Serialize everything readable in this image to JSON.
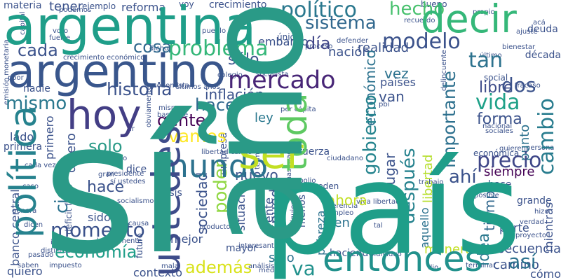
{
  "word_cloud": {
    "words": [
      {
        "text": "sí",
        "color": "#2a9a87"
      },
      {
        "text": "año",
        "color": "#2a9a87"
      },
      {
        "text": "país",
        "color": "#1f9e89"
      },
      {
        "text": "argentina",
        "color": "#1f9e89"
      },
      {
        "text": "hoy",
        "color": "#433e85"
      },
      {
        "text": "argentino",
        "color": "#39568c"
      },
      {
        "text": "política",
        "color": "#26828e"
      },
      {
        "text": "ustedes",
        "color": "#3e4c8a"
      },
      {
        "text": "ser",
        "color": "#c2df23"
      },
      {
        "text": "decir",
        "color": "#35b779"
      },
      {
        "text": "toda",
        "color": "#5ec962"
      },
      {
        "text": "entonces",
        "color": "#21918c"
      },
      {
        "text": "mundo",
        "color": "#2c728e"
      },
      {
        "text": "mercado",
        "color": "#482677"
      },
      {
        "text": "político",
        "color": "#2a788e"
      },
      {
        "text": "problema",
        "color": "#35b779"
      },
      {
        "text": "historia",
        "color": "#3b528b"
      },
      {
        "text": "modelo",
        "color": "#3b528b"
      },
      {
        "text": "sistema",
        "color": "#31688e"
      },
      {
        "text": "hecho",
        "color": "#48c16e"
      },
      {
        "text": "tan",
        "color": "#2c728e"
      },
      {
        "text": "dos",
        "color": "#3b528b"
      },
      {
        "text": "hacer",
        "color": "#31688e"
      },
      {
        "text": "cosa",
        "color": "#31688e"
      },
      {
        "text": "gobierno",
        "color": "#25848e"
      },
      {
        "text": "vida",
        "color": "#1fa188"
      },
      {
        "text": "cambio",
        "color": "#287c8e"
      },
      {
        "text": "importante",
        "color": "#2d708e"
      },
      {
        "text": "precio",
        "color": "#3f4788"
      },
      {
        "text": "después",
        "color": "#26828e"
      },
      {
        "text": "gente",
        "color": "#440154"
      },
      {
        "text": "mismo",
        "color": "#2a788e"
      },
      {
        "text": "cada",
        "color": "#3b528b"
      },
      {
        "text": "vamos",
        "color": "#fde725"
      },
      {
        "text": "momento",
        "color": "#3b528b"
      },
      {
        "text": "economía",
        "color": "#1f9e89"
      },
      {
        "text": "así",
        "color": "#2c728e"
      },
      {
        "text": "va",
        "color": "#21918c"
      },
      {
        "text": "además",
        "color": "#d8e219"
      },
      {
        "text": "ciento",
        "color": "#2c728e"
      },
      {
        "text": "hace",
        "color": "#3b528b"
      },
      {
        "text": "solo",
        "color": "#2a9a87"
      },
      {
        "text": "día",
        "color": "#404688"
      },
      {
        "text": "sociedad",
        "color": "#3b528b"
      },
      {
        "text": "poder",
        "color": "#90d743"
      },
      {
        "text": "puede",
        "color": "#3b528b"
      },
      {
        "text": "ahí",
        "color": "#3b528b"
      },
      {
        "text": "idea",
        "color": "#2a788e"
      },
      {
        "text": "forma",
        "color": "#3b528b"
      },
      {
        "text": "libre",
        "color": "#3e4c8a"
      },
      {
        "text": "nación",
        "color": "#3b528b"
      },
      {
        "text": "inflación",
        "color": "#3b528b"
      },
      {
        "text": "sólo",
        "color": "#3b528b"
      },
      {
        "text": "económico",
        "color": "#2c728e"
      },
      {
        "text": "punto",
        "color": "#2c728e"
      },
      {
        "text": "embargo",
        "color": "#3b528b"
      },
      {
        "text": "realidad",
        "color": "#3b528b"
      },
      {
        "text": "ley",
        "color": "#2a788e"
      },
      {
        "text": "vez",
        "color": "#2c728e"
      },
      {
        "text": "países",
        "color": "#3b528b"
      },
      {
        "text": "van",
        "color": "#3b528b"
      },
      {
        "text": "lugar",
        "color": "#3b528b"
      },
      {
        "text": "libertad",
        "color": "#b5de2b"
      },
      {
        "text": "siempre",
        "color": "#440154"
      },
      {
        "text": "tiempo",
        "color": "#31688e"
      },
      {
        "text": "ahora",
        "color": "#c2df23"
      },
      {
        "text": "nuevo",
        "color": "#3b528b"
      },
      {
        "text": "frente",
        "color": "#3b528b"
      },
      {
        "text": "situación",
        "color": "#3b528b"
      },
      {
        "text": "bien",
        "color": "#2c728e"
      },
      {
        "text": "sino",
        "color": "#2c728e"
      },
      {
        "text": "pobreza",
        "color": "#2c728e"
      },
      {
        "text": "aquello",
        "color": "#2c728e"
      },
      {
        "text": "parte",
        "color": "#3b528b"
      },
      {
        "text": "manera",
        "color": "#c2df23"
      },
      {
        "text": "consecuencia",
        "color": "#3b528b"
      },
      {
        "text": "camino",
        "color": "#3b528b"
      },
      {
        "text": "cómo",
        "color": "#3b528b"
      },
      {
        "text": "contexto",
        "color": "#3b528b"
      },
      {
        "text": "quiero",
        "color": "#3b528b"
      },
      {
        "text": "mejor",
        "color": "#3b528b"
      },
      {
        "text": "sido",
        "color": "#3b528b"
      },
      {
        "text": "banco central",
        "color": "#3b528b"
      },
      {
        "text": "dinero",
        "color": "#3b528b"
      },
      {
        "text": "primero",
        "color": "#3b528b"
      },
      {
        "text": "lado",
        "color": "#3b528b"
      },
      {
        "text": "materia",
        "color": "#3b528b"
      },
      {
        "text": "tener",
        "color": "#3b528b"
      },
      {
        "text": "reforma",
        "color": "#3b528b"
      },
      {
        "text": "crecimiento",
        "color": "#3b528b"
      },
      {
        "text": "bueno",
        "color": "#3b528b"
      },
      {
        "text": "nadie",
        "color": "#3b528b"
      },
      {
        "text": "primera",
        "color": "#3b528b"
      },
      {
        "text": "deuda",
        "color": "#3b528b"
      },
      {
        "text": "década",
        "color": "#3b528b"
      },
      {
        "text": "social",
        "color": "#3b528b"
      },
      {
        "text": "económica",
        "color": "#3b528b"
      },
      {
        "text": "base",
        "color": "#3b528b"
      },
      {
        "text": "grande",
        "color": "#3b528b"
      },
      {
        "text": "mientras",
        "color": "#3b528b"
      },
      {
        "text": "menos",
        "color": "#3b528b"
      },
      {
        "text": "mayor",
        "color": "#3b528b"
      },
      {
        "text": "fuerza",
        "color": "#3b528b"
      },
      {
        "text": "empresa",
        "color": "#3b528b"
      },
      {
        "text": "crisis",
        "color": "#3b528b"
      },
      {
        "text": "dice",
        "color": "#3b528b"
      },
      {
        "text": "pueden",
        "color": "#3b528b"
      },
      {
        "text": "ejemplo",
        "color": "#3b528b"
      },
      {
        "text": "voy",
        "color": "#3b528b"
      },
      {
        "text": "proceso",
        "color": "#3b528b"
      },
      {
        "text": "único",
        "color": "#3b528b"
      },
      {
        "text": "sí ustedes",
        "color": "#3b528b"
      },
      {
        "text": "déficit fiscal",
        "color": "#3b528b"
      },
      {
        "text": "socialismo",
        "color": "#3b528b"
      },
      {
        "text": "haciendo",
        "color": "#3b528b"
      },
      {
        "text": "impuesto",
        "color": "#3b528b"
      },
      {
        "text": "saben",
        "color": "#3b528b"
      },
      {
        "text": "pasado",
        "color": "#3b528b"
      },
      {
        "text": "ingreso",
        "color": "#3b528b"
      },
      {
        "text": "futuro",
        "color": "#3b528b"
      },
      {
        "text": "básicamente",
        "color": "#3b528b"
      },
      {
        "text": "producto",
        "color": "#3b528b"
      },
      {
        "text": "verdad",
        "color": "#3b528b"
      },
      {
        "text": "individuo",
        "color": "#3b528b"
      },
      {
        "text": "terminar",
        "color": "#3b528b"
      },
      {
        "text": "hizo",
        "color": "#3b528b"
      },
      {
        "text": "proyecto",
        "color": "#3b528b"
      },
      {
        "text": "persona",
        "color": "#3b528b"
      },
      {
        "text": "término",
        "color": "#3b528b"
      },
      {
        "text": "libertad carajo",
        "color": "#3b528b"
      },
      {
        "text": "viva libertad",
        "color": "#3b528b"
      },
      {
        "text": "cualquier",
        "color": "#3b528b"
      },
      {
        "text": "trabajo",
        "color": "#3b528b"
      },
      {
        "text": "quieren",
        "color": "#3b528b"
      },
      {
        "text": "herencia",
        "color": "#3b528b"
      },
      {
        "text": "empleo",
        "color": "#3b528b"
      },
      {
        "text": "posible",
        "color": "#3b528b"
      },
      {
        "text": "interesante",
        "color": "#3b528b"
      },
      {
        "text": "presidente",
        "color": "#3b528b"
      },
      {
        "text": "chico",
        "color": "#3b528b"
      },
      {
        "text": "pesar",
        "color": "#3b528b"
      },
      {
        "text": "cada vez",
        "color": "#3b528b"
      },
      {
        "text": "gran",
        "color": "#3b528b"
      },
      {
        "text": "caso",
        "color": "#3b528b"
      },
      {
        "text": "genera",
        "color": "#3b528b"
      },
      {
        "text": "dicen",
        "color": "#3b528b"
      },
      {
        "text": "distintos",
        "color": "#3b528b"
      },
      {
        "text": "bastante",
        "color": "#3b528b"
      },
      {
        "text": "misma",
        "color": "#3b528b"
      },
      {
        "text": "mala",
        "color": "#3b528b"
      },
      {
        "text": "obviamente",
        "color": "#3b528b"
      },
      {
        "text": "ir",
        "color": "#3b528b"
      },
      {
        "text": "nacional",
        "color": "#3b528b"
      },
      {
        "text": "sociales",
        "color": "#3b528b"
      },
      {
        "text": "delincuente",
        "color": "#3b528b"
      },
      {
        "text": "fracaso",
        "color": "#3b528b"
      },
      {
        "text": "último",
        "color": "#3b528b"
      },
      {
        "text": "bienestar",
        "color": "#3b528b"
      },
      {
        "text": "ajuste",
        "color": "#3b528b"
      },
      {
        "text": "acá",
        "color": "#3b528b"
      },
      {
        "text": "propio",
        "color": "#3b528b"
      },
      {
        "text": "recuerdo",
        "color": "#3b528b"
      },
      {
        "text": "defender",
        "color": "#3b528b"
      },
      {
        "text": "pueblo",
        "color": "#3b528b"
      },
      {
        "text": "podemos",
        "color": "#3b528b"
      },
      {
        "text": "voto",
        "color": "#3b528b"
      },
      {
        "text": "fuerte",
        "color": "#3b528b"
      },
      {
        "text": "capital",
        "color": "#3b528b"
      },
      {
        "text": "crecimiento económico",
        "color": "#3b528b"
      },
      {
        "text": "emisión monetaria",
        "color": "#3b528b"
      },
      {
        "text": "pbi",
        "color": "#3b528b"
      },
      {
        "text": "per cápita",
        "color": "#3b528b"
      },
      {
        "text": "socialista",
        "color": "#3b528b"
      },
      {
        "text": "colegio",
        "color": "#3b528b"
      },
      {
        "text": "dicho",
        "color": "#3b528b"
      },
      {
        "text": "economista",
        "color": "#3b528b"
      },
      {
        "text": "últimos años",
        "color": "#3b528b"
      },
      {
        "text": "muchas gracias",
        "color": "#3b528b"
      },
      {
        "text": "dio",
        "color": "#3b528b"
      },
      {
        "text": "tal",
        "color": "#3b528b"
      },
      {
        "text": "medio",
        "color": "#3b528b"
      },
      {
        "text": "análisis",
        "color": "#3b528b"
      },
      {
        "text": "monopolio",
        "color": "#3b528b"
      },
      {
        "text": "ciudadano",
        "color": "#3b528b"
      },
      {
        "text": "causa",
        "color": "#3b528b"
      },
      {
        "text": "poor",
        "color": "#3b528b"
      }
    ]
  }
}
